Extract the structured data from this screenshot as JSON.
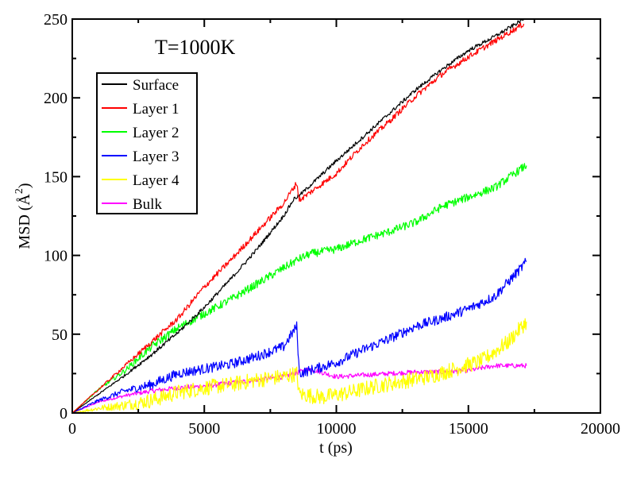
{
  "chart_data": {
    "type": "line",
    "title": "",
    "annotation": "T=1000K",
    "xlabel": "t (ps)",
    "ylabel_prefix": "MSD (",
    "ylabel_unit": "Å",
    "ylabel_power": "2",
    "ylabel_suffix": ")",
    "xlim": [
      0,
      20000
    ],
    "ylim": [
      0,
      250
    ],
    "x_ticks": [
      0,
      5000,
      10000,
      15000,
      20000
    ],
    "x_tick_labels": [
      "0",
      "5000",
      "10000",
      "15000",
      "20000"
    ],
    "y_ticks": [
      0,
      50,
      100,
      150,
      200,
      250
    ],
    "y_tick_labels": [
      "0",
      "50",
      "100",
      "150",
      "200",
      "250"
    ],
    "grid": false,
    "legend_position": "upper-left",
    "series": [
      {
        "name": "Surface",
        "color": "#000000",
        "noise": 1.2,
        "points": [
          [
            0,
            0
          ],
          [
            1000,
            12
          ],
          [
            2000,
            24
          ],
          [
            3000,
            37
          ],
          [
            4000,
            51
          ],
          [
            5000,
            67
          ],
          [
            6000,
            85
          ],
          [
            7000,
            104
          ],
          [
            8000,
            125
          ],
          [
            8400,
            136
          ],
          [
            8600,
            138
          ],
          [
            10000,
            160
          ],
          [
            11000,
            175
          ],
          [
            12000,
            190
          ],
          [
            13000,
            205
          ],
          [
            14000,
            218
          ],
          [
            15000,
            230
          ],
          [
            16000,
            239
          ],
          [
            17000,
            249
          ],
          [
            17100,
            250
          ]
        ]
      },
      {
        "name": "Layer 1",
        "color": "#ff0000",
        "noise": 1.8,
        "points": [
          [
            0,
            0
          ],
          [
            1000,
            15
          ],
          [
            2000,
            30
          ],
          [
            3000,
            45
          ],
          [
            4000,
            60
          ],
          [
            5000,
            80
          ],
          [
            6000,
            97
          ],
          [
            7000,
            115
          ],
          [
            8000,
            133
          ],
          [
            8500,
            146
          ],
          [
            8600,
            135
          ],
          [
            10000,
            152
          ],
          [
            11000,
            170
          ],
          [
            12000,
            185
          ],
          [
            13000,
            201
          ],
          [
            14000,
            215
          ],
          [
            15000,
            226
          ],
          [
            16000,
            236
          ],
          [
            17000,
            246
          ],
          [
            17100,
            247
          ]
        ]
      },
      {
        "name": "Layer 2",
        "color": "#00ff00",
        "noise": 2.6,
        "points": [
          [
            0,
            0
          ],
          [
            1000,
            15
          ],
          [
            2000,
            27
          ],
          [
            3000,
            42
          ],
          [
            4000,
            54
          ],
          [
            5000,
            63
          ],
          [
            6000,
            72
          ],
          [
            7000,
            82
          ],
          [
            8000,
            92
          ],
          [
            8500,
            97
          ],
          [
            9000,
            101
          ],
          [
            10000,
            104
          ],
          [
            11000,
            110
          ],
          [
            12000,
            115
          ],
          [
            13000,
            121
          ],
          [
            14000,
            131
          ],
          [
            15000,
            137
          ],
          [
            16000,
            143
          ],
          [
            17000,
            155
          ],
          [
            17200,
            157
          ]
        ]
      },
      {
        "name": "Layer 3",
        "color": "#0000ff",
        "noise": 3.2,
        "points": [
          [
            0,
            0
          ],
          [
            1000,
            8
          ],
          [
            2000,
            14
          ],
          [
            3000,
            18
          ],
          [
            4000,
            25
          ],
          [
            5000,
            28
          ],
          [
            6000,
            31
          ],
          [
            7000,
            36
          ],
          [
            8000,
            42
          ],
          [
            8500,
            55
          ],
          [
            8600,
            25
          ],
          [
            10000,
            32
          ],
          [
            11000,
            40
          ],
          [
            12000,
            47
          ],
          [
            13000,
            55
          ],
          [
            14000,
            60
          ],
          [
            15000,
            66
          ],
          [
            16000,
            74
          ],
          [
            17000,
            92
          ],
          [
            17200,
            96
          ]
        ]
      },
      {
        "name": "Layer 4",
        "color": "#ffff00",
        "noise": 5,
        "points": [
          [
            0,
            0
          ],
          [
            1000,
            3
          ],
          [
            2000,
            5
          ],
          [
            3000,
            8
          ],
          [
            4000,
            13
          ],
          [
            5000,
            16
          ],
          [
            6000,
            18
          ],
          [
            7000,
            21
          ],
          [
            8000,
            23
          ],
          [
            8500,
            25
          ],
          [
            8600,
            12
          ],
          [
            9500,
            10
          ],
          [
            10500,
            13
          ],
          [
            11500,
            17
          ],
          [
            12500,
            20
          ],
          [
            13500,
            23
          ],
          [
            14500,
            28
          ],
          [
            15500,
            33
          ],
          [
            16500,
            45
          ],
          [
            17200,
            58
          ]
        ]
      },
      {
        "name": "Bulk",
        "color": "#ff00ff",
        "noise": 1.5,
        "points": [
          [
            0,
            0
          ],
          [
            1000,
            7
          ],
          [
            2000,
            11
          ],
          [
            3000,
            14
          ],
          [
            4000,
            16
          ],
          [
            5000,
            17
          ],
          [
            6000,
            19
          ],
          [
            7000,
            21
          ],
          [
            8000,
            23
          ],
          [
            8600,
            26
          ],
          [
            9000,
            28
          ],
          [
            10000,
            23
          ],
          [
            11000,
            24
          ],
          [
            12000,
            25
          ],
          [
            13000,
            26
          ],
          [
            14000,
            26
          ],
          [
            15000,
            27
          ],
          [
            16000,
            30
          ],
          [
            17000,
            30
          ],
          [
            17200,
            30
          ]
        ]
      }
    ]
  }
}
